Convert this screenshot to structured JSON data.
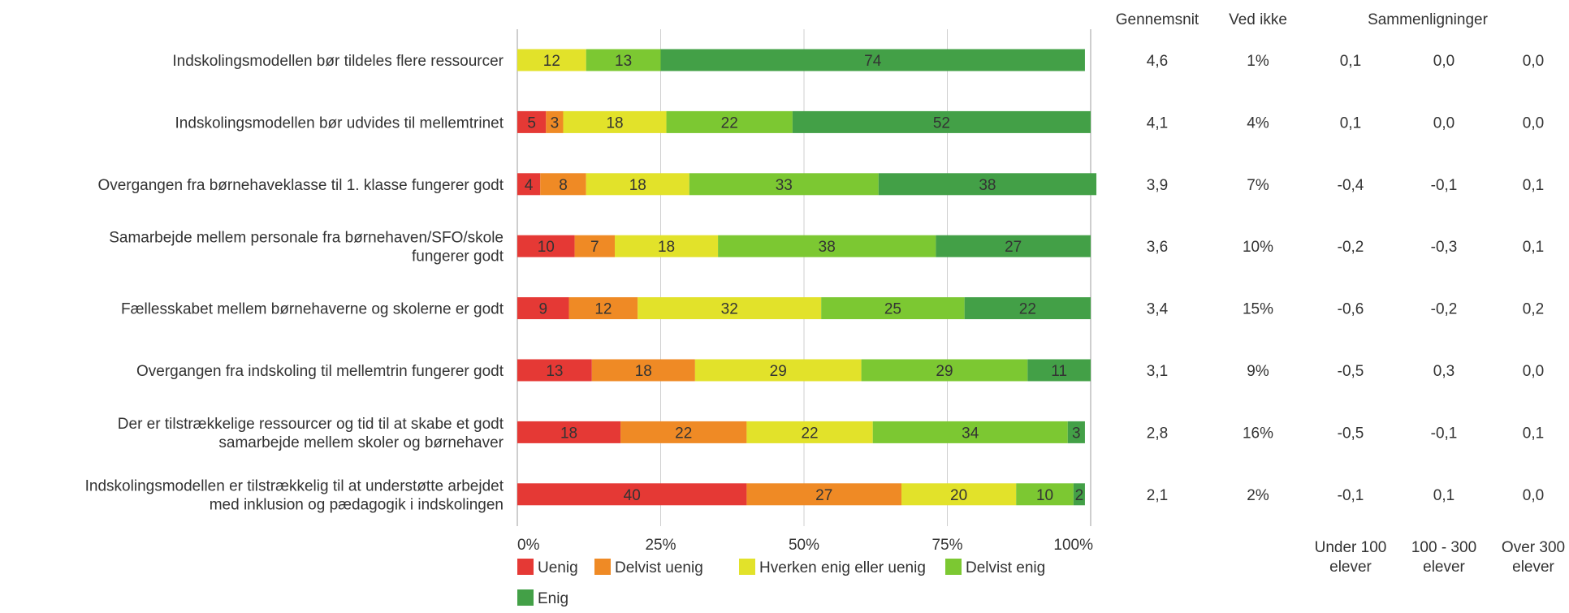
{
  "chart_data": {
    "type": "bar",
    "stacked": true,
    "orientation": "horizontal",
    "title": "",
    "xlim": [
      0,
      100
    ],
    "x_ticks": [
      "0%",
      "25%",
      "50%",
      "75%",
      "100%"
    ],
    "grid": true,
    "legend_position": "bottom-left",
    "categories": [
      [
        "Indskolingsmodellen bør tildeles flere ressourcer"
      ],
      [
        "Indskolingsmodellen bør udvides til mellemtrinet"
      ],
      [
        "Overgangen fra børnehaveklasse til 1. klasse fungerer godt"
      ],
      [
        "Samarbejde mellem personale fra børnehaven/SFO/skole",
        "fungerer godt"
      ],
      [
        "Fællesskabet mellem børnehaverne og skolerne er godt"
      ],
      [
        "Overgangen fra indskoling til mellemtrin fungerer godt"
      ],
      [
        "Der er tilstrækkelige ressourcer og tid til at skabe et godt",
        "samarbejde mellem skoler og børnehaver"
      ],
      [
        "Indskolingsmodellen er tilstrækkelig til at understøtte arbejdet",
        "med inklusion og pædagogik i indskolingen"
      ]
    ],
    "series": [
      {
        "name": "Uenig",
        "color": "#e53935",
        "values": [
          0,
          5,
          4,
          10,
          9,
          13,
          18,
          40
        ]
      },
      {
        "name": "Delvist uenig",
        "color": "#ef8a25",
        "values": [
          0,
          3,
          8,
          7,
          12,
          18,
          22,
          27
        ]
      },
      {
        "name": "Hverken enig eller uenig",
        "color": "#e2e22a",
        "values": [
          12,
          18,
          18,
          18,
          32,
          29,
          22,
          20
        ]
      },
      {
        "name": "Delvist enig",
        "color": "#7cc832",
        "values": [
          13,
          22,
          33,
          38,
          25,
          29,
          34,
          10
        ]
      },
      {
        "name": "Enig",
        "color": "#43a047",
        "values": [
          74,
          52,
          38,
          27,
          22,
          11,
          3,
          2
        ]
      }
    ],
    "table": {
      "headers": {
        "mean": "Gennemsnit",
        "dontknow": "Ved ikke",
        "comparisons": "Sammenligninger"
      },
      "mean": [
        "4,6",
        "4,1",
        "3,9",
        "3,6",
        "3,4",
        "3,1",
        "2,8",
        "2,1"
      ],
      "dontknow": [
        "1%",
        "4%",
        "7%",
        "10%",
        "15%",
        "9%",
        "16%",
        "2%"
      ],
      "comparison_columns": [
        {
          "label": [
            "Under 100",
            "elever"
          ],
          "values": [
            "0,1",
            "0,1",
            "-0,4",
            "-0,2",
            "-0,6",
            "-0,5",
            "-0,5",
            "-0,1"
          ]
        },
        {
          "label": [
            "100 - 300",
            "elever"
          ],
          "values": [
            "0,0",
            "0,0",
            "-0,1",
            "-0,3",
            "-0,2",
            "0,3",
            "-0,1",
            "0,1"
          ]
        },
        {
          "label": [
            "Over 300",
            "elever"
          ],
          "values": [
            "0,0",
            "0,0",
            "0,1",
            "0,1",
            "0,2",
            "0,0",
            "0,1",
            "0,0"
          ]
        }
      ]
    }
  }
}
